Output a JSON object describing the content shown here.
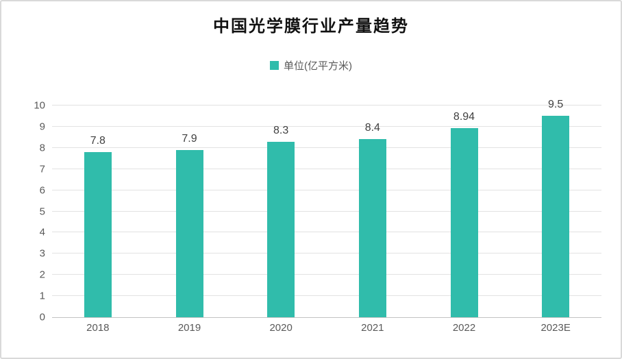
{
  "chart_data": {
    "type": "bar",
    "title": "中国光学膜行业产量趋势",
    "legend": [
      {
        "label": "单位(亿平方米)"
      }
    ],
    "legend_position": "top",
    "categories": [
      "2018",
      "2019",
      "2020",
      "2021",
      "2022",
      "2023E"
    ],
    "values": [
      7.8,
      7.9,
      8.3,
      8.4,
      8.94,
      9.5
    ],
    "value_labels": [
      "7.8",
      "7.9",
      "8.3",
      "8.4",
      "8.94",
      "9.5"
    ],
    "xlabel": "",
    "ylabel": "",
    "ylim": [
      0,
      10
    ],
    "yticks": [
      0,
      1,
      2,
      3,
      4,
      5,
      6,
      7,
      8,
      9,
      10
    ],
    "grid": true,
    "colors": {
      "bar": "#30bcab",
      "gridline": "#e2e2e2",
      "axis_line": "#c3c3c3",
      "tick_text": "#595959",
      "value_text": "#3f3f3f",
      "title_text": "#111111"
    }
  }
}
